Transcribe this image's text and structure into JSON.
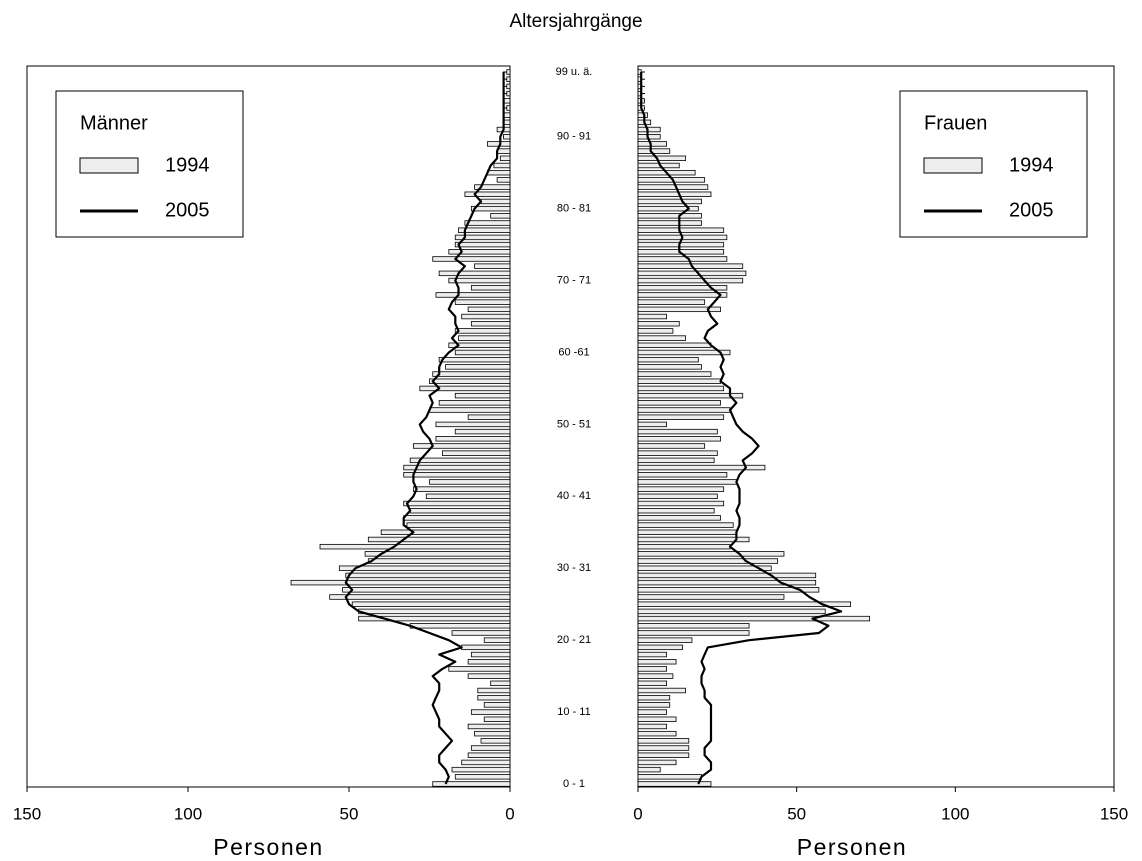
{
  "chart_data": {
    "type": "pyramid",
    "title": "Altersjahrgänge",
    "categories": [
      "0  -  1",
      null,
      null,
      null,
      null,
      null,
      null,
      null,
      null,
      null,
      "10 - 11",
      null,
      null,
      null,
      null,
      null,
      null,
      null,
      null,
      null,
      "20 - 21",
      null,
      null,
      null,
      null,
      null,
      null,
      null,
      null,
      null,
      "30 - 31",
      null,
      null,
      null,
      null,
      null,
      null,
      null,
      null,
      null,
      "40 - 41",
      null,
      null,
      null,
      null,
      null,
      null,
      null,
      null,
      null,
      "50 - 51",
      null,
      null,
      null,
      null,
      null,
      null,
      null,
      null,
      null,
      "60 -61",
      null,
      null,
      null,
      null,
      null,
      null,
      null,
      null,
      null,
      "70 - 71",
      null,
      null,
      null,
      null,
      null,
      null,
      null,
      null,
      null,
      "80 - 81",
      null,
      null,
      null,
      null,
      null,
      null,
      null,
      null,
      null,
      "90 - 91",
      null,
      null,
      null,
      null,
      null,
      null,
      null,
      null,
      "99 u. ä."
    ],
    "panels": [
      {
        "legend_title": "Männer",
        "legend": "upper left",
        "x_reversed": true,
        "xlabel": "Personen",
        "xlim": [
          0,
          150
        ],
        "xticks": [
          0,
          50,
          100,
          150
        ],
        "series": [
          {
            "name": "1994",
            "kind": "bar",
            "color": "#eeeeee",
            "values": [
              24,
              17,
              18,
              15,
              13,
              12,
              9,
              11,
              13,
              8,
              12,
              8,
              10,
              10,
              6,
              13,
              19,
              13,
              12,
              15,
              8,
              18,
              31,
              47,
              47,
              49,
              56,
              52,
              68,
              51,
              53,
              44,
              45,
              59,
              44,
              40,
              32,
              33,
              31,
              33,
              26,
              30,
              25,
              33,
              33,
              31,
              21,
              30,
              23,
              17,
              23,
              13,
              25,
              22,
              17,
              28,
              25,
              24,
              20,
              22,
              17,
              19,
              16,
              17,
              12,
              15,
              13,
              17,
              23,
              12,
              19,
              22,
              11,
              24,
              19,
              17,
              17,
              16,
              14,
              6,
              12,
              9,
              14,
              11,
              4,
              7,
              5,
              3,
              4,
              7,
              2,
              4,
              2,
              2,
              1,
              2,
              1,
              1,
              1,
              1
            ]
          },
          {
            "name": "2005",
            "kind": "line",
            "color": "#000000",
            "values": [
              20,
              19,
              20,
              22,
              22,
              20,
              18,
              20,
              22,
              22,
              23,
              24,
              23,
              22,
              22,
              24,
              21,
              17,
              22,
              15,
              19,
              25,
              31,
              39,
              47,
              50,
              51,
              49,
              51,
              50,
              48,
              43,
              40,
              36,
              33,
              30,
              33,
              33,
              31,
              32,
              30,
              29,
              30,
              30,
              29,
              28,
              26,
              24,
              25,
              27,
              28,
              26,
              25,
              24,
              25,
              22,
              24,
              22,
              22,
              21,
              19,
              16,
              18,
              16,
              17,
              17,
              19,
              18,
              16,
              16,
              17,
              16,
              14,
              17,
              15,
              16,
              14,
              14,
              13,
              12,
              11,
              9,
              11,
              9,
              8,
              7,
              6,
              4,
              4,
              3,
              3,
              2,
              2,
              2,
              2,
              2,
              2,
              2,
              2,
              2
            ]
          }
        ]
      },
      {
        "legend_title": "Frauen",
        "legend": "upper right",
        "x_reversed": false,
        "xlabel": "Personen",
        "xlim": [
          0,
          150
        ],
        "xticks": [
          0,
          50,
          100,
          150
        ],
        "series": [
          {
            "name": "1994",
            "kind": "bar",
            "color": "#eeeeee",
            "values": [
              23,
              20,
              7,
              12,
              16,
              16,
              16,
              12,
              9,
              12,
              9,
              10,
              10,
              15,
              9,
              11,
              9,
              12,
              9,
              14,
              17,
              35,
              35,
              73,
              59,
              67,
              46,
              57,
              56,
              56,
              42,
              44,
              46,
              29,
              35,
              31,
              30,
              26,
              24,
              27,
              25,
              27,
              31,
              28,
              40,
              24,
              25,
              21,
              26,
              25,
              9,
              27,
              29,
              26,
              33,
              27,
              26,
              23,
              20,
              19,
              29,
              23,
              15,
              11,
              13,
              9,
              26,
              21,
              28,
              28,
              33,
              34,
              33,
              28,
              27,
              27,
              28,
              27,
              20,
              20,
              19,
              20,
              23,
              22,
              21,
              18,
              13,
              15,
              10,
              9,
              7,
              7,
              4,
              3,
              2,
              2,
              1,
              1,
              1,
              1
            ]
          },
          {
            "name": "2005",
            "kind": "line",
            "color": "#000000",
            "values": [
              19,
              20,
              23,
              23,
              21,
              21,
              23,
              23,
              23,
              23,
              23,
              23,
              21,
              21,
              20,
              20,
              21,
              20,
              21,
              22,
              35,
              57,
              60,
              55,
              64,
              58,
              54,
              51,
              45,
              42,
              38,
              34,
              32,
              29,
              31,
              31,
              32,
              32,
              31,
              32,
              32,
              32,
              31,
              32,
              34,
              33,
              36,
              38,
              36,
              33,
              31,
              30,
              29,
              31,
              29,
              29,
              26,
              27,
              26,
              27,
              26,
              23,
              21,
              22,
              25,
              23,
              22,
              24,
              26,
              23,
              21,
              19,
              17,
              16,
              13,
              13,
              14,
              13,
              13,
              13,
              16,
              14,
              13,
              12,
              11,
              9,
              7,
              6,
              4,
              4,
              3,
              3,
              2,
              2,
              1,
              1,
              1,
              1,
              1,
              1
            ]
          }
        ]
      }
    ]
  }
}
